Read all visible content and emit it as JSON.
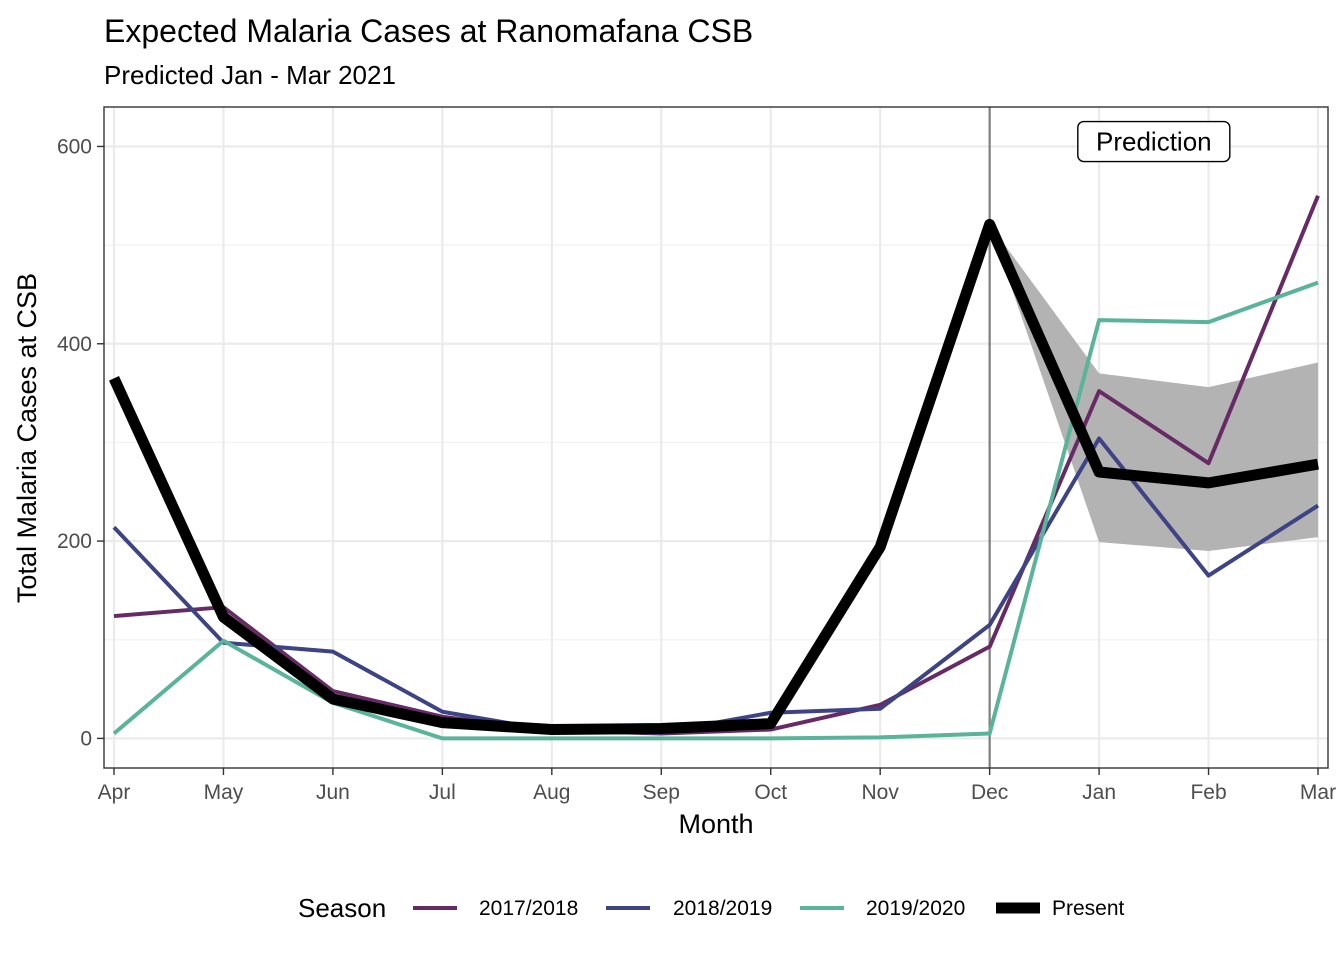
{
  "chart_data": {
    "type": "line",
    "title": "Expected Malaria Cases at Ranomafana CSB",
    "subtitle": "Predicted Jan - Mar 2021",
    "xlabel": "Month",
    "ylabel": "Total Malaria Cases at CSB",
    "categories": [
      "Apr",
      "May",
      "Jun",
      "Jul",
      "Aug",
      "Sep",
      "Oct",
      "Nov",
      "Dec",
      "Jan",
      "Feb",
      "Mar"
    ],
    "ylim": [
      -30,
      640
    ],
    "yticks": [
      0,
      200,
      400,
      600
    ],
    "grid": true,
    "legend_title": "Season",
    "legend_position": "bottom",
    "series": [
      {
        "name": "2017/2018",
        "color": "#672a65",
        "values": [
          124,
          133,
          48,
          22,
          8,
          5,
          9,
          34,
          93,
          352,
          279,
          550
        ]
      },
      {
        "name": "2018/2019",
        "color": "#3d4385",
        "values": [
          214,
          97,
          88,
          27,
          8,
          6,
          26,
          30,
          115,
          304,
          165,
          236
        ]
      },
      {
        "name": "2019/2020",
        "color": "#59b49a",
        "values": [
          5,
          99,
          36,
          0,
          0,
          0,
          0,
          1,
          5,
          424,
          422,
          462
        ]
      },
      {
        "name": "Present",
        "color": "#000000",
        "values": [
          365,
          123,
          40,
          16,
          9,
          10,
          15,
          194,
          521,
          270,
          259,
          278
        ]
      }
    ],
    "prediction_band": {
      "x": [
        "Dec",
        "Jan",
        "Feb",
        "Mar"
      ],
      "lower": [
        521,
        199,
        190,
        204
      ],
      "upper": [
        521,
        370,
        356,
        381
      ],
      "color": "#b3b3b3"
    },
    "vline_at": "Dec",
    "annotation": {
      "text": "Prediction",
      "x": 9.5,
      "y": 605
    }
  }
}
